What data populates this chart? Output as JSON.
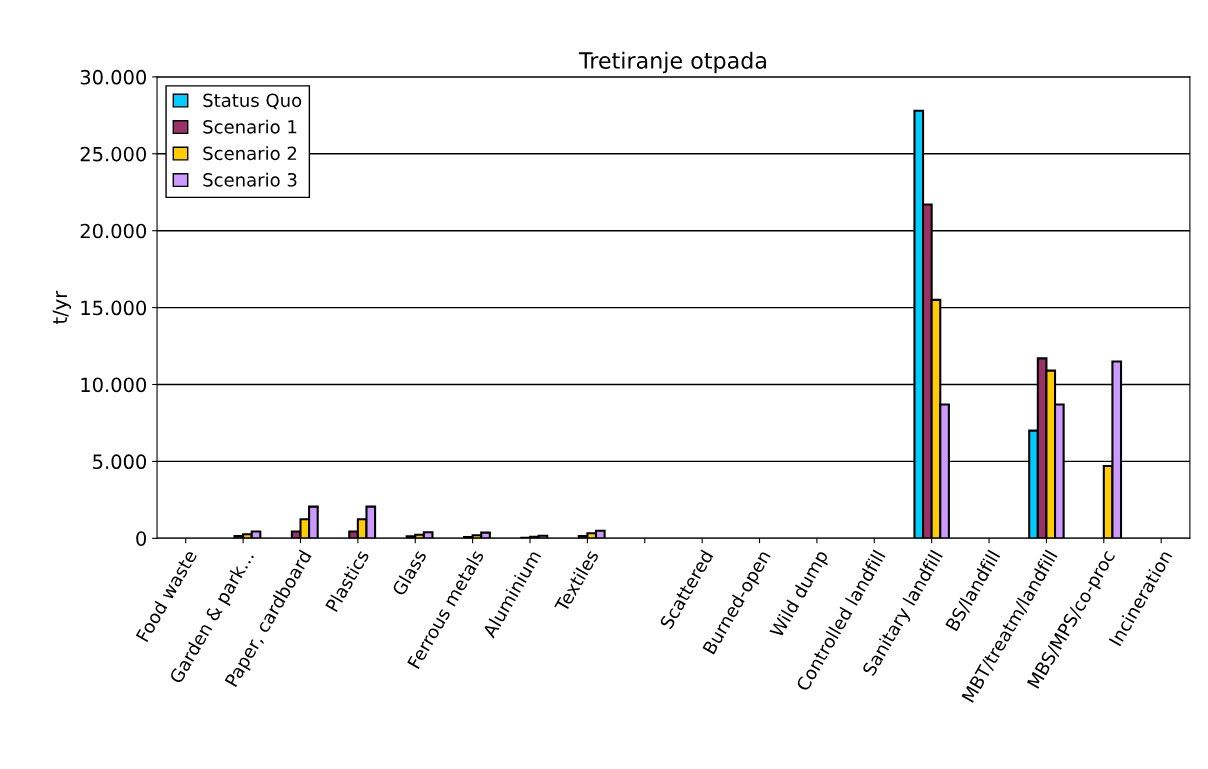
{
  "chart_data": {
    "type": "bar",
    "title": "Tretiranje otpada",
    "ylabel": "t/yr",
    "categories": [
      "Food waste",
      "Garden & park…",
      "Paper, cardboard",
      "Plastics",
      "Glass",
      "Ferrous metals",
      "Aluminium",
      "Textiles",
      null,
      "Scattered",
      "Burned-open",
      "Wild dump",
      "Controlled landfill",
      "Sanitary landfill",
      "BS/landfill",
      "MBT/treatm/landfill",
      "MBS/MPS/co-proc",
      "Incineration"
    ],
    "series": [
      {
        "name": "Status Quo",
        "color": "#00ccff",
        "values": [
          0,
          0,
          0,
          0,
          0,
          0,
          0,
          0,
          0,
          0,
          0,
          0,
          0,
          27800,
          0,
          7000,
          0,
          0
        ]
      },
      {
        "name": "Scenario 1",
        "color": "#993366",
        "values": [
          0,
          150,
          440,
          440,
          130,
          80,
          40,
          150,
          0,
          0,
          0,
          0,
          0,
          21700,
          0,
          11700,
          0,
          0
        ]
      },
      {
        "name": "Scenario 2",
        "color": "#ffcc00",
        "values": [
          0,
          260,
          1240,
          1240,
          230,
          200,
          100,
          330,
          0,
          0,
          0,
          0,
          0,
          15500,
          0,
          10900,
          4700,
          0
        ]
      },
      {
        "name": "Scenario 3",
        "color": "#cc99ff",
        "values": [
          0,
          440,
          2060,
          2060,
          390,
          370,
          170,
          490,
          0,
          0,
          0,
          0,
          0,
          8700,
          0,
          8700,
          11500,
          0
        ]
      }
    ],
    "ylim": [
      0,
      30000
    ],
    "yticks": [
      {
        "value": 0,
        "label": "0"
      },
      {
        "value": 5000,
        "label": "5.000"
      },
      {
        "value": 10000,
        "label": "10.000"
      },
      {
        "value": 15000,
        "label": "15.000"
      },
      {
        "value": 20000,
        "label": "20.000"
      },
      {
        "value": 25000,
        "label": "25.000"
      },
      {
        "value": 30000,
        "label": "30.000"
      }
    ],
    "grid": "y",
    "legend": "top left"
  }
}
